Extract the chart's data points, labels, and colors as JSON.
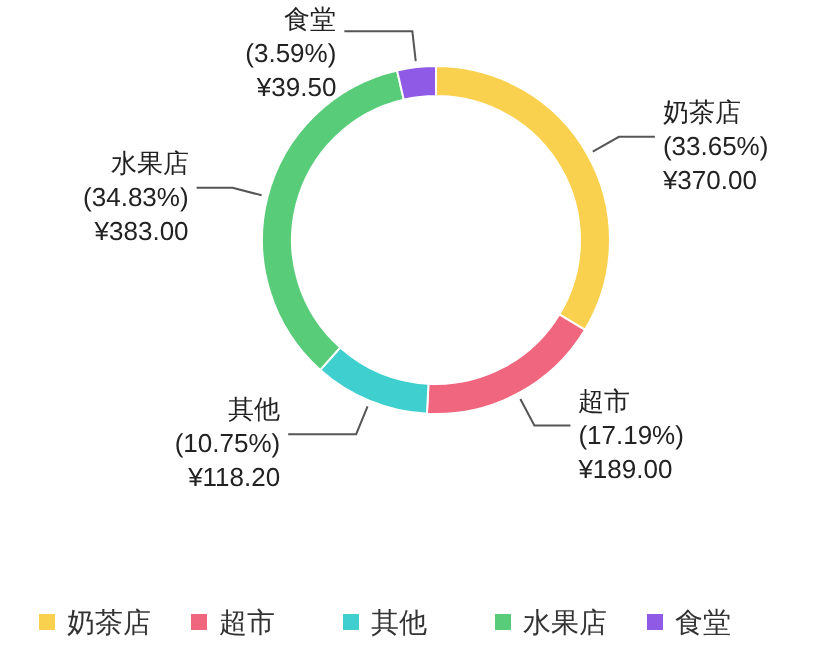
{
  "chart_data": {
    "type": "donut",
    "categories": [
      "奶茶店",
      "超市",
      "其他",
      "水果店",
      "食堂"
    ],
    "values": [
      370,
      189,
      118.2,
      383,
      39.5
    ],
    "colors": [
      "#fad14f",
      "#f0667e",
      "#3fcfcf",
      "#58cc79",
      "#8f5be6"
    ],
    "value_labels": [
      "(33.65%)\n¥370.00",
      "(17.19%)\n¥189.00",
      "(10.75%)\n¥118.20",
      "(34.83%)\n¥383.00",
      "(3.59%)\n¥39.50"
    ],
    "legend": "bottom"
  }
}
